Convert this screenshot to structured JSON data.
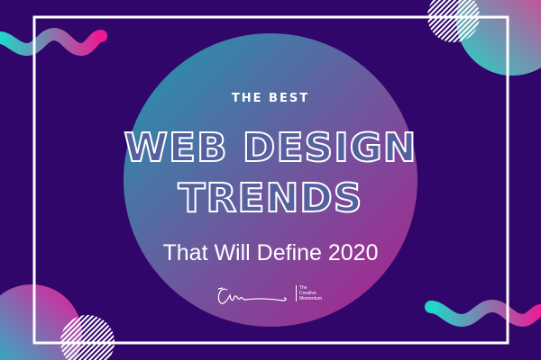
{
  "kicker": "THE BEST",
  "title_line1": "WEB DESIGN",
  "title_line2": "TRENDS",
  "subtitle": "That Will Define 2020",
  "brand": {
    "line1": "The",
    "line2": "Creative",
    "line3": "Momentum"
  },
  "colors": {
    "background": "#31066b",
    "teal": "#1fd8c8",
    "pink": "#e8199a",
    "frame": "#ffffff"
  }
}
